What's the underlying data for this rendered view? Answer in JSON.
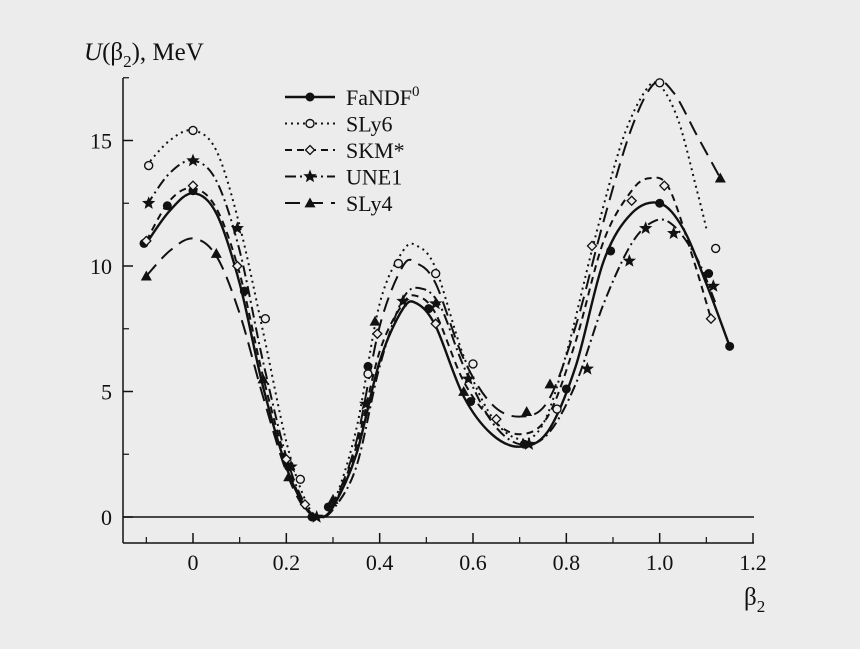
{
  "colors": {
    "background": "#ececec",
    "ink": "#111111"
  },
  "chart_data": {
    "type": "line",
    "ylabel": "U(β2), MeV",
    "xlabel": "β2",
    "xlim": [
      -0.15,
      1.2
    ],
    "ylim": [
      -1,
      17.7
    ],
    "xticks": [
      0,
      0.2,
      0.4,
      0.6,
      0.8,
      1.0,
      1.2
    ],
    "xtick_labels": [
      "0",
      "0.2",
      "0.4",
      "0.6",
      "0.8",
      "1.0",
      "1.2"
    ],
    "yticks": [
      0,
      5,
      10,
      15
    ],
    "ytick_labels": [
      "0",
      "5",
      "10",
      "15"
    ],
    "grid": false,
    "legend_position": "top-center",
    "series": [
      {
        "name": "FaNDF0",
        "line_style": "solid",
        "marker": "filled-circle",
        "curve": [
          [
            -0.1,
            10.9
          ],
          [
            -0.05,
            12.2
          ],
          [
            0,
            12.9
          ],
          [
            0.05,
            12.1
          ],
          [
            0.1,
            9.3
          ],
          [
            0.15,
            5.2
          ],
          [
            0.2,
            2.0
          ],
          [
            0.24,
            0.4
          ],
          [
            0.27,
            0.0
          ],
          [
            0.3,
            0.4
          ],
          [
            0.35,
            2.5
          ],
          [
            0.4,
            6.2
          ],
          [
            0.45,
            8.3
          ],
          [
            0.48,
            8.5
          ],
          [
            0.52,
            7.6
          ],
          [
            0.58,
            4.8
          ],
          [
            0.64,
            3.3
          ],
          [
            0.7,
            2.8
          ],
          [
            0.76,
            3.4
          ],
          [
            0.82,
            6.0
          ],
          [
            0.88,
            10.2
          ],
          [
            0.94,
            12.1
          ],
          [
            1.0,
            12.5
          ],
          [
            1.05,
            11.5
          ],
          [
            1.1,
            9.3
          ],
          [
            1.15,
            6.8
          ]
        ],
        "markers": [
          [
            -0.105,
            10.9
          ],
          [
            -0.055,
            12.4
          ],
          [
            0,
            13.0
          ],
          [
            0.11,
            9.0
          ],
          [
            0.205,
            2.0
          ],
          [
            0.255,
            0.0
          ],
          [
            0.29,
            0.4
          ],
          [
            0.375,
            6.0
          ],
          [
            0.505,
            8.3
          ],
          [
            0.595,
            4.6
          ],
          [
            0.71,
            2.9
          ],
          [
            0.8,
            5.1
          ],
          [
            0.895,
            10.6
          ],
          [
            1.0,
            12.5
          ],
          [
            1.105,
            9.7
          ],
          [
            1.15,
            6.8
          ]
        ]
      },
      {
        "name": "SLy6",
        "line_style": "dotted",
        "marker": "open-circle",
        "curve": [
          [
            -0.1,
            14.0
          ],
          [
            -0.05,
            15.0
          ],
          [
            0,
            15.4
          ],
          [
            0.05,
            14.6
          ],
          [
            0.1,
            11.6
          ],
          [
            0.15,
            7.4
          ],
          [
            0.2,
            3.0
          ],
          [
            0.24,
            0.7
          ],
          [
            0.27,
            0.0
          ],
          [
            0.3,
            0.5
          ],
          [
            0.35,
            3.5
          ],
          [
            0.4,
            8.5
          ],
          [
            0.45,
            10.6
          ],
          [
            0.48,
            10.8
          ],
          [
            0.52,
            9.9
          ],
          [
            0.58,
            6.4
          ],
          [
            0.64,
            4.0
          ],
          [
            0.7,
            3.1
          ],
          [
            0.75,
            3.7
          ],
          [
            0.8,
            6.5
          ],
          [
            0.86,
            11.0
          ],
          [
            0.92,
            15.0
          ],
          [
            0.97,
            17.0
          ],
          [
            1.0,
            17.2
          ],
          [
            1.04,
            15.8
          ],
          [
            1.08,
            13.0
          ],
          [
            1.1,
            11.5
          ]
        ],
        "markers": [
          [
            -0.095,
            14.0
          ],
          [
            0,
            15.4
          ],
          [
            0.155,
            7.9
          ],
          [
            0.23,
            1.5
          ],
          [
            0.375,
            5.7
          ],
          [
            0.44,
            10.1
          ],
          [
            0.52,
            9.7
          ],
          [
            0.6,
            6.1
          ],
          [
            0.78,
            4.3
          ],
          [
            1.0,
            17.3
          ],
          [
            1.12,
            10.7
          ]
        ]
      },
      {
        "name": "SKM*",
        "line_style": "dashed",
        "marker": "open-diamond",
        "curve": [
          [
            -0.1,
            11.0
          ],
          [
            -0.05,
            12.6
          ],
          [
            0,
            13.1
          ],
          [
            0.05,
            12.3
          ],
          [
            0.1,
            9.7
          ],
          [
            0.15,
            5.6
          ],
          [
            0.2,
            2.2
          ],
          [
            0.24,
            0.4
          ],
          [
            0.27,
            0.0
          ],
          [
            0.3,
            0.4
          ],
          [
            0.35,
            2.8
          ],
          [
            0.4,
            6.6
          ],
          [
            0.45,
            8.5
          ],
          [
            0.48,
            8.8
          ],
          [
            0.52,
            8.1
          ],
          [
            0.58,
            5.4
          ],
          [
            0.64,
            3.9
          ],
          [
            0.7,
            3.3
          ],
          [
            0.76,
            4.0
          ],
          [
            0.82,
            7.0
          ],
          [
            0.88,
            11.0
          ],
          [
            0.94,
            13.0
          ],
          [
            0.98,
            13.5
          ],
          [
            1.02,
            13.1
          ],
          [
            1.07,
            10.4
          ],
          [
            1.11,
            7.9
          ]
        ],
        "markers": [
          [
            -0.1,
            11.0
          ],
          [
            0,
            13.2
          ],
          [
            0.095,
            10.0
          ],
          [
            0.2,
            2.3
          ],
          [
            0.24,
            0.5
          ],
          [
            0.395,
            7.3
          ],
          [
            0.52,
            7.7
          ],
          [
            0.65,
            3.9
          ],
          [
            0.855,
            10.8
          ],
          [
            0.94,
            12.6
          ],
          [
            1.01,
            13.2
          ],
          [
            1.11,
            7.9
          ]
        ]
      },
      {
        "name": "UNE1",
        "line_style": "dash-dot",
        "marker": "filled-star",
        "curve": [
          [
            -0.1,
            12.4
          ],
          [
            -0.05,
            13.7
          ],
          [
            0,
            14.2
          ],
          [
            0.05,
            13.4
          ],
          [
            0.1,
            10.6
          ],
          [
            0.15,
            6.2
          ],
          [
            0.2,
            2.4
          ],
          [
            0.24,
            0.5
          ],
          [
            0.27,
            0.0
          ],
          [
            0.3,
            0.3
          ],
          [
            0.35,
            2.0
          ],
          [
            0.4,
            6.0
          ],
          [
            0.45,
            8.7
          ],
          [
            0.49,
            9.1
          ],
          [
            0.53,
            8.4
          ],
          [
            0.58,
            6.0
          ],
          [
            0.64,
            3.8
          ],
          [
            0.7,
            2.9
          ],
          [
            0.76,
            3.3
          ],
          [
            0.82,
            5.3
          ],
          [
            0.88,
            8.5
          ],
          [
            0.94,
            10.9
          ],
          [
            0.99,
            11.8
          ],
          [
            1.03,
            11.6
          ],
          [
            1.08,
            10.3
          ],
          [
            1.12,
            8.5
          ]
        ],
        "markers": [
          [
            -0.095,
            12.5
          ],
          [
            0,
            14.2
          ],
          [
            0.095,
            11.5
          ],
          [
            0.21,
            2.0
          ],
          [
            0.265,
            0.0
          ],
          [
            0.37,
            4.5
          ],
          [
            0.45,
            8.6
          ],
          [
            0.52,
            8.5
          ],
          [
            0.59,
            5.5
          ],
          [
            0.72,
            2.9
          ],
          [
            0.845,
            5.9
          ],
          [
            0.935,
            10.2
          ],
          [
            0.97,
            11.5
          ],
          [
            1.03,
            11.3
          ],
          [
            1.115,
            9.2
          ]
        ]
      },
      {
        "name": "SLy4",
        "line_style": "long-dash",
        "marker": "filled-triangle",
        "curve": [
          [
            -0.1,
            9.6
          ],
          [
            -0.05,
            10.6
          ],
          [
            0,
            11.1
          ],
          [
            0.05,
            10.4
          ],
          [
            0.1,
            8.1
          ],
          [
            0.15,
            4.8
          ],
          [
            0.2,
            1.8
          ],
          [
            0.24,
            0.3
          ],
          [
            0.27,
            0.0
          ],
          [
            0.3,
            0.5
          ],
          [
            0.35,
            3.0
          ],
          [
            0.4,
            7.6
          ],
          [
            0.45,
            10.0
          ],
          [
            0.48,
            10.1
          ],
          [
            0.52,
            9.3
          ],
          [
            0.58,
            6.3
          ],
          [
            0.64,
            4.5
          ],
          [
            0.7,
            4.0
          ],
          [
            0.76,
            4.6
          ],
          [
            0.82,
            7.6
          ],
          [
            0.88,
            11.8
          ],
          [
            0.94,
            15.5
          ],
          [
            0.99,
            17.3
          ],
          [
            1.03,
            16.9
          ],
          [
            1.08,
            15.2
          ],
          [
            1.13,
            13.5
          ]
        ],
        "markers": [
          [
            -0.1,
            9.6
          ],
          [
            0.05,
            10.5
          ],
          [
            0.15,
            5.5
          ],
          [
            0.205,
            1.6
          ],
          [
            0.3,
            0.7
          ],
          [
            0.39,
            7.8
          ],
          [
            0.58,
            5.0
          ],
          [
            0.715,
            4.2
          ],
          [
            0.765,
            5.3
          ],
          [
            1.13,
            13.5
          ]
        ]
      }
    ]
  }
}
